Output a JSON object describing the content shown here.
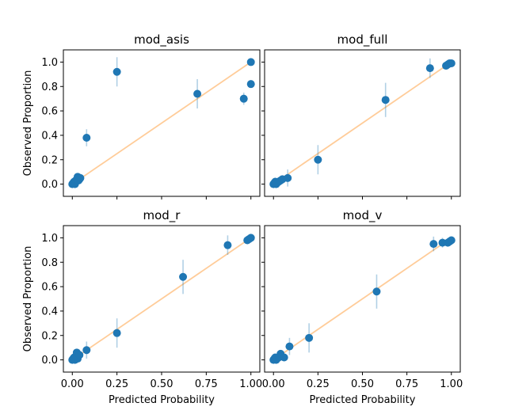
{
  "chart_data": [
    {
      "type": "scatter",
      "title": "mod_asis",
      "xlabel": "",
      "ylabel": "Observed Proportion",
      "xlim": [
        -0.05,
        1.05
      ],
      "ylim": [
        -0.1,
        1.1
      ],
      "xticks": [
        0.0,
        0.25,
        0.5,
        0.75,
        1.0
      ],
      "xtick_labels": [],
      "yticks": [
        0.0,
        0.2,
        0.4,
        0.6,
        0.8,
        1.0
      ],
      "ytick_labels": [
        "0.0",
        "0.2",
        "0.4",
        "0.6",
        "0.8",
        "1.0"
      ],
      "reference_line": [
        [
          0,
          0
        ],
        [
          1,
          1
        ]
      ],
      "points": [
        {
          "x": 0.0,
          "y": 0.0,
          "err": 0.01
        },
        {
          "x": 0.005,
          "y": 0.01,
          "err": 0.01
        },
        {
          "x": 0.01,
          "y": 0.02,
          "err": 0.015
        },
        {
          "x": 0.015,
          "y": 0.0,
          "err": 0.01
        },
        {
          "x": 0.02,
          "y": 0.03,
          "err": 0.02
        },
        {
          "x": 0.025,
          "y": 0.04,
          "err": 0.02
        },
        {
          "x": 0.03,
          "y": 0.06,
          "err": 0.03
        },
        {
          "x": 0.035,
          "y": 0.03,
          "err": 0.02
        },
        {
          "x": 0.04,
          "y": 0.04,
          "err": 0.02
        },
        {
          "x": 0.045,
          "y": 0.05,
          "err": 0.025
        },
        {
          "x": 0.08,
          "y": 0.38,
          "err": 0.07
        },
        {
          "x": 0.25,
          "y": 0.92,
          "err": 0.12
        },
        {
          "x": 0.7,
          "y": 0.74,
          "err": 0.12
        },
        {
          "x": 0.96,
          "y": 0.7,
          "err": 0.05
        },
        {
          "x": 1.0,
          "y": 1.0,
          "err": 0.0
        },
        {
          "x": 1.0,
          "y": 0.82,
          "err": 0.0
        }
      ]
    },
    {
      "type": "scatter",
      "title": "mod_full",
      "xlabel": "",
      "ylabel": "",
      "xlim": [
        -0.05,
        1.05
      ],
      "ylim": [
        -0.1,
        1.1
      ],
      "xticks": [
        0.0,
        0.25,
        0.5,
        0.75,
        1.0
      ],
      "xtick_labels": [],
      "yticks": [
        0.0,
        0.2,
        0.4,
        0.6,
        0.8,
        1.0
      ],
      "ytick_labels": [],
      "reference_line": [
        [
          0,
          0
        ],
        [
          1,
          1
        ]
      ],
      "points": [
        {
          "x": 0.0,
          "y": 0.0,
          "err": 0.01
        },
        {
          "x": 0.005,
          "y": 0.01,
          "err": 0.01
        },
        {
          "x": 0.01,
          "y": 0.02,
          "err": 0.015
        },
        {
          "x": 0.015,
          "y": 0.0,
          "err": 0.01
        },
        {
          "x": 0.02,
          "y": 0.01,
          "err": 0.015
        },
        {
          "x": 0.03,
          "y": 0.02,
          "err": 0.02
        },
        {
          "x": 0.04,
          "y": 0.03,
          "err": 0.03
        },
        {
          "x": 0.05,
          "y": 0.04,
          "err": 0.03
        },
        {
          "x": 0.08,
          "y": 0.05,
          "err": 0.07
        },
        {
          "x": 0.25,
          "y": 0.2,
          "err": 0.12
        },
        {
          "x": 0.63,
          "y": 0.69,
          "err": 0.14
        },
        {
          "x": 0.88,
          "y": 0.95,
          "err": 0.08
        },
        {
          "x": 0.97,
          "y": 0.97,
          "err": 0.02
        },
        {
          "x": 0.98,
          "y": 0.98,
          "err": 0.01
        },
        {
          "x": 0.99,
          "y": 0.99,
          "err": 0.01
        },
        {
          "x": 1.0,
          "y": 0.99,
          "err": 0.01
        }
      ]
    },
    {
      "type": "scatter",
      "title": "mod_r",
      "xlabel": "Predicted Probability",
      "ylabel": "Observed Proportion",
      "xlim": [
        -0.05,
        1.05
      ],
      "ylim": [
        -0.1,
        1.1
      ],
      "xticks": [
        0.0,
        0.25,
        0.5,
        0.75,
        1.0
      ],
      "xtick_labels": [
        "0.00",
        "0.25",
        "0.50",
        "0.75",
        "1.00"
      ],
      "yticks": [
        0.0,
        0.2,
        0.4,
        0.6,
        0.8,
        1.0
      ],
      "ytick_labels": [
        "0.0",
        "0.2",
        "0.4",
        "0.6",
        "0.8",
        "1.0"
      ],
      "reference_line": [
        [
          0,
          0
        ],
        [
          1,
          1
        ]
      ],
      "points": [
        {
          "x": 0.0,
          "y": 0.0,
          "err": 0.01
        },
        {
          "x": 0.005,
          "y": 0.01,
          "err": 0.01
        },
        {
          "x": 0.01,
          "y": 0.02,
          "err": 0.015
        },
        {
          "x": 0.015,
          "y": 0.0,
          "err": 0.01
        },
        {
          "x": 0.02,
          "y": 0.03,
          "err": 0.02
        },
        {
          "x": 0.025,
          "y": 0.06,
          "err": 0.03
        },
        {
          "x": 0.03,
          "y": 0.01,
          "err": 0.02
        },
        {
          "x": 0.04,
          "y": 0.04,
          "err": 0.03
        },
        {
          "x": 0.08,
          "y": 0.08,
          "err": 0.07
        },
        {
          "x": 0.25,
          "y": 0.22,
          "err": 0.12
        },
        {
          "x": 0.62,
          "y": 0.68,
          "err": 0.14
        },
        {
          "x": 0.87,
          "y": 0.94,
          "err": 0.08
        },
        {
          "x": 0.98,
          "y": 0.98,
          "err": 0.02
        },
        {
          "x": 0.99,
          "y": 0.99,
          "err": 0.01
        },
        {
          "x": 1.0,
          "y": 1.0,
          "err": 0.01
        }
      ]
    },
    {
      "type": "scatter",
      "title": "mod_v",
      "xlabel": "Predicted Probability",
      "ylabel": "",
      "xlim": [
        -0.05,
        1.05
      ],
      "ylim": [
        -0.1,
        1.1
      ],
      "xticks": [
        0.0,
        0.25,
        0.5,
        0.75,
        1.0
      ],
      "xtick_labels": [
        "0.00",
        "0.25",
        "0.50",
        "0.75",
        "1.00"
      ],
      "yticks": [
        0.0,
        0.2,
        0.4,
        0.6,
        0.8,
        1.0
      ],
      "ytick_labels": [],
      "reference_line": [
        [
          0,
          0
        ],
        [
          1,
          1
        ]
      ],
      "points": [
        {
          "x": 0.0,
          "y": 0.0,
          "err": 0.01
        },
        {
          "x": 0.005,
          "y": 0.01,
          "err": 0.01
        },
        {
          "x": 0.01,
          "y": 0.02,
          "err": 0.015
        },
        {
          "x": 0.015,
          "y": 0.0,
          "err": 0.01
        },
        {
          "x": 0.02,
          "y": 0.01,
          "err": 0.015
        },
        {
          "x": 0.03,
          "y": 0.02,
          "err": 0.02
        },
        {
          "x": 0.04,
          "y": 0.05,
          "err": 0.03
        },
        {
          "x": 0.06,
          "y": 0.02,
          "err": 0.03
        },
        {
          "x": 0.09,
          "y": 0.11,
          "err": 0.07
        },
        {
          "x": 0.2,
          "y": 0.18,
          "err": 0.12
        },
        {
          "x": 0.58,
          "y": 0.56,
          "err": 0.14
        },
        {
          "x": 0.9,
          "y": 0.95,
          "err": 0.06
        },
        {
          "x": 0.95,
          "y": 0.96,
          "err": 0.04
        },
        {
          "x": 0.98,
          "y": 0.96,
          "err": 0.02
        },
        {
          "x": 0.99,
          "y": 0.97,
          "err": 0.01
        },
        {
          "x": 1.0,
          "y": 0.98,
          "err": 0.01
        }
      ]
    }
  ],
  "colors": {
    "points": "#1f77b4",
    "reference_line": "#ffcc99"
  }
}
